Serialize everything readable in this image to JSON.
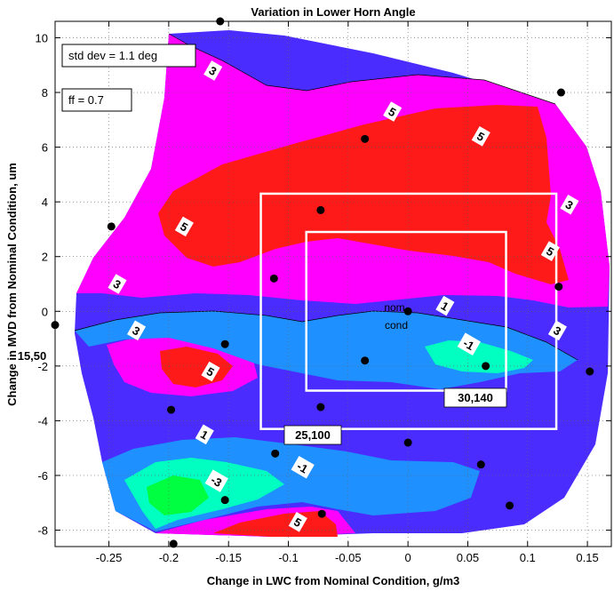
{
  "chart_data": {
    "type": "contour",
    "title": "Variation in Lower Horn Angle",
    "xlabel": "Change in LWC from Nominal Condition, g/m3",
    "ylabel": "Change in MVD from Nominal Condition, um",
    "xlim": [
      -0.295,
      0.17
    ],
    "ylim": [
      -8.6,
      10.6
    ],
    "grid": true,
    "xticks": [
      -0.25,
      -0.2,
      -0.15,
      -0.1,
      -0.05,
      0,
      0.05,
      0.1,
      0.15
    ],
    "xtick_labels": [
      "-0.25",
      "-0.2",
      "-0.15",
      "-0.1",
      "-0.05",
      "0",
      "0.05",
      "0.1",
      "0.15"
    ],
    "yticks": [
      -8,
      -6,
      -4,
      -2,
      0,
      2,
      4,
      6,
      8,
      10
    ],
    "ytick_labels": [
      "-8",
      "-6",
      "-4",
      "-2",
      "0",
      "2",
      "4",
      "6",
      "8",
      "10"
    ],
    "contour_levels": [
      -3,
      -1,
      1,
      3,
      5
    ],
    "level_colors": {
      "below_-3": "#00ff40",
      "-3_to_-1": "#00ffc0",
      "-1_to_1": "#1e90ff",
      "1_to_3": "#4a2cff",
      "3_to_5": "#ff00ff",
      "above_5": "#ff1a1a"
    },
    "annotations": {
      "std_dev": "std dev = 1.1 deg",
      "ff": "ff = 0.7",
      "nom_line1": "nom",
      "nom_line2": "cond",
      "box_inner_label": "30,140",
      "box_outer_label": "25,100",
      "point_label": "15,50"
    },
    "boxes": [
      {
        "name": "25,100",
        "x": [
          -0.123,
          0.124
        ],
        "y": [
          -4.3,
          4.3
        ]
      },
      {
        "name": "30,140",
        "x": [
          -0.085,
          0.082
        ],
        "y": [
          -2.9,
          2.9
        ]
      }
    ],
    "contour_labels": [
      {
        "text": "3",
        "x": -0.163,
        "y": 8.8
      },
      {
        "text": "5",
        "x": -0.013,
        "y": 7.3
      },
      {
        "text": "5",
        "x": 0.061,
        "y": 6.4
      },
      {
        "text": "5",
        "x": -0.187,
        "y": 3.1
      },
      {
        "text": "3",
        "x": -0.243,
        "y": 1.0
      },
      {
        "text": "3",
        "x": 0.135,
        "y": 3.9
      },
      {
        "text": "5",
        "x": 0.119,
        "y": 2.2
      },
      {
        "text": "3",
        "x": 0.125,
        "y": -0.7
      },
      {
        "text": "1",
        "x": 0.031,
        "y": 0.2
      },
      {
        "text": "-1",
        "x": 0.051,
        "y": -1.2
      },
      {
        "text": "3",
        "x": -0.227,
        "y": -0.7
      },
      {
        "text": "5",
        "x": -0.165,
        "y": -2.2
      },
      {
        "text": "1",
        "x": -0.17,
        "y": -4.5
      },
      {
        "text": "-1",
        "x": -0.088,
        "y": -5.7
      },
      {
        "text": "-3",
        "x": -0.16,
        "y": -6.2
      },
      {
        "text": "5",
        "x": -0.092,
        "y": -7.7
      }
    ],
    "points": [
      [
        -0.157,
        10.6
      ],
      [
        0.128,
        8.0
      ],
      [
        -0.036,
        6.3
      ],
      [
        -0.248,
        3.1
      ],
      [
        -0.073,
        3.7
      ],
      [
        -0.112,
        1.2
      ],
      [
        0.126,
        0.9
      ],
      [
        0.0,
        0.0
      ],
      [
        -0.295,
        -0.5
      ],
      [
        -0.153,
        -1.2
      ],
      [
        -0.036,
        -1.8
      ],
      [
        0.065,
        -2.0
      ],
      [
        0.152,
        -2.2
      ],
      [
        -0.198,
        -3.6
      ],
      [
        -0.073,
        -3.5
      ],
      [
        -0.111,
        -5.2
      ],
      [
        0.0,
        -4.8
      ],
      [
        0.061,
        -5.6
      ],
      [
        -0.153,
        -6.9
      ],
      [
        0.085,
        -7.1
      ],
      [
        -0.072,
        -7.4
      ],
      [
        -0.196,
        -8.5
      ]
    ]
  }
}
